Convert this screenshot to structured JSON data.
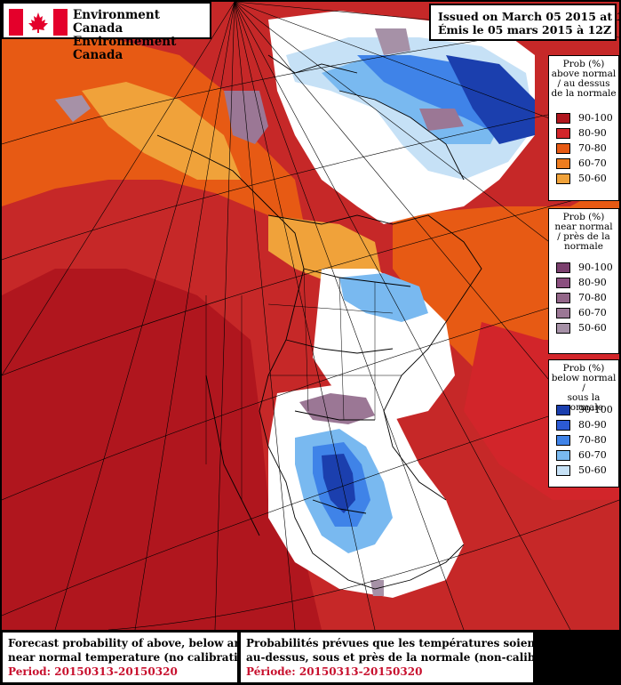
{
  "header": {
    "agency_en": "Environment Canada",
    "agency_fr": "Environnement Canada",
    "issued_en": "Issued on March 05 2015 at 12Z",
    "issued_fr": "Émis le 05 mars 2015 à 12Z"
  },
  "legends": {
    "above": {
      "title": [
        "Prob (%)",
        "above normal",
        "/ au dessus",
        "de la normale"
      ],
      "items": [
        {
          "label": "90-100",
          "color": "#b0161e"
        },
        {
          "label": "80-90",
          "color": "#d2252a"
        },
        {
          "label": "70-80",
          "color": "#e75a14"
        },
        {
          "label": "60-70",
          "color": "#ee7d1f"
        },
        {
          "label": "50-60",
          "color": "#f0a23a"
        }
      ]
    },
    "near": {
      "title": [
        "Prob (%)",
        "near normal",
        "/ près de la",
        "normale"
      ],
      "items": [
        {
          "label": "90-100",
          "color": "#7b3f6e"
        },
        {
          "label": "80-90",
          "color": "#8b4f7f"
        },
        {
          "label": "70-80",
          "color": "#936689"
        },
        {
          "label": "60-70",
          "color": "#9b7795"
        },
        {
          "label": "50-60",
          "color": "#a691a7"
        }
      ]
    },
    "below": {
      "title": [
        "Prob (%)",
        "below normal /",
        "sous la normale"
      ],
      "items": [
        {
          "label": "90-100",
          "color": "#1b3fae"
        },
        {
          "label": "80-90",
          "color": "#2c5ad4"
        },
        {
          "label": "70-80",
          "color": "#3f83e8"
        },
        {
          "label": "60-70",
          "color": "#79b9f0"
        },
        {
          "label": "50-60",
          "color": "#c6e1f6"
        }
      ]
    }
  },
  "footer": {
    "en_line1": "Forecast probability of above, below and",
    "en_line2": "near normal temperature (no calibration)",
    "en_period": "Period: 20150313-20150320",
    "fr_line1": "Probabilités prévues que les températures soient",
    "fr_line2": "au-dessus, sous et près de la normale (non-calibrées)",
    "fr_period": "Période: 20150313-20150320"
  }
}
